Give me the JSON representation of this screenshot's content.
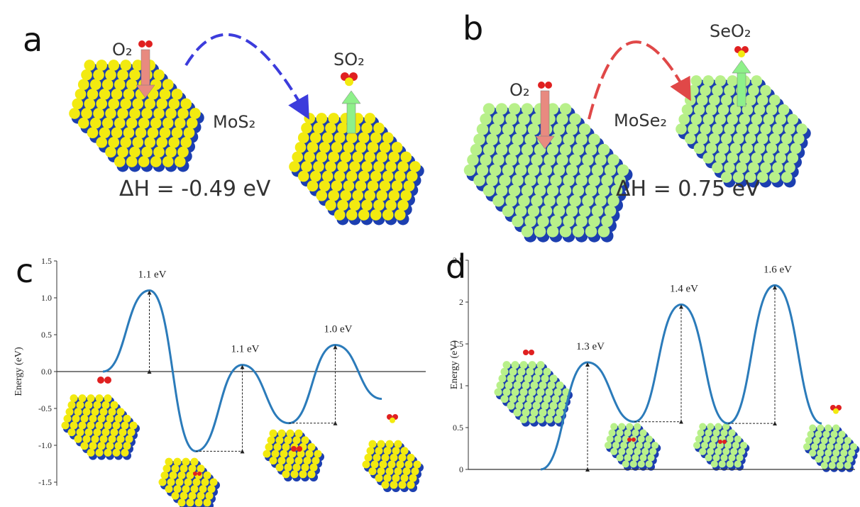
{
  "panels": {
    "a": {
      "label": "a",
      "reactant": "O₂",
      "surface": "MoS₂",
      "product": "SO₂",
      "enthalpy_label": "ΔH = ",
      "enthalpy": "-0.49 eV",
      "enthalpy_color": "#3c3cdc"
    },
    "b": {
      "label": "b",
      "reactant": "O₂",
      "surface": "MoSe₂",
      "product": "SeO₂",
      "enthalpy_label": "ΔH = ",
      "enthalpy": "0.75 eV",
      "enthalpy_color": "#e04848"
    }
  },
  "chart_data": [
    {
      "type": "line",
      "label": "c",
      "ylabel": "Energy (eV)",
      "categories": [
        null,
        null,
        null,
        null,
        null,
        null,
        null
      ],
      "series": [
        {
          "color": "#2b7bba",
          "values": [
            0,
            1.1,
            -1.08,
            0.09,
            -0.7,
            0.36,
            -0.37
          ]
        }
      ],
      "ylim": [
        -1.5,
        1.5
      ],
      "yticks": [
        -1.5,
        {
          "value": -1.0,
          "label": "-1.0"
        },
        -0.5,
        {
          "value": 0.0,
          "label": "0.0"
        },
        0.5,
        {
          "value": 1.0,
          "label": "1.0"
        },
        1.5
      ],
      "annotations": [
        "1.1 eV",
        "1.1 eV",
        "1.0 eV"
      ]
    },
    {
      "type": "line",
      "label": "d",
      "ylabel": "Energy (eV)",
      "categories": [
        null,
        null,
        null,
        null,
        null,
        null,
        null
      ],
      "series": [
        {
          "color": "#2b7bba",
          "values": [
            0,
            1.28,
            0.57,
            1.97,
            0.55,
            2.2,
            0.55
          ]
        }
      ],
      "ylim": [
        0,
        2.5
      ],
      "yticks": [
        0,
        0.5,
        1,
        1.5,
        2,
        2.5
      ],
      "annotations": [
        "1.3 eV",
        "1.4 eV",
        "1.6 eV"
      ]
    }
  ]
}
